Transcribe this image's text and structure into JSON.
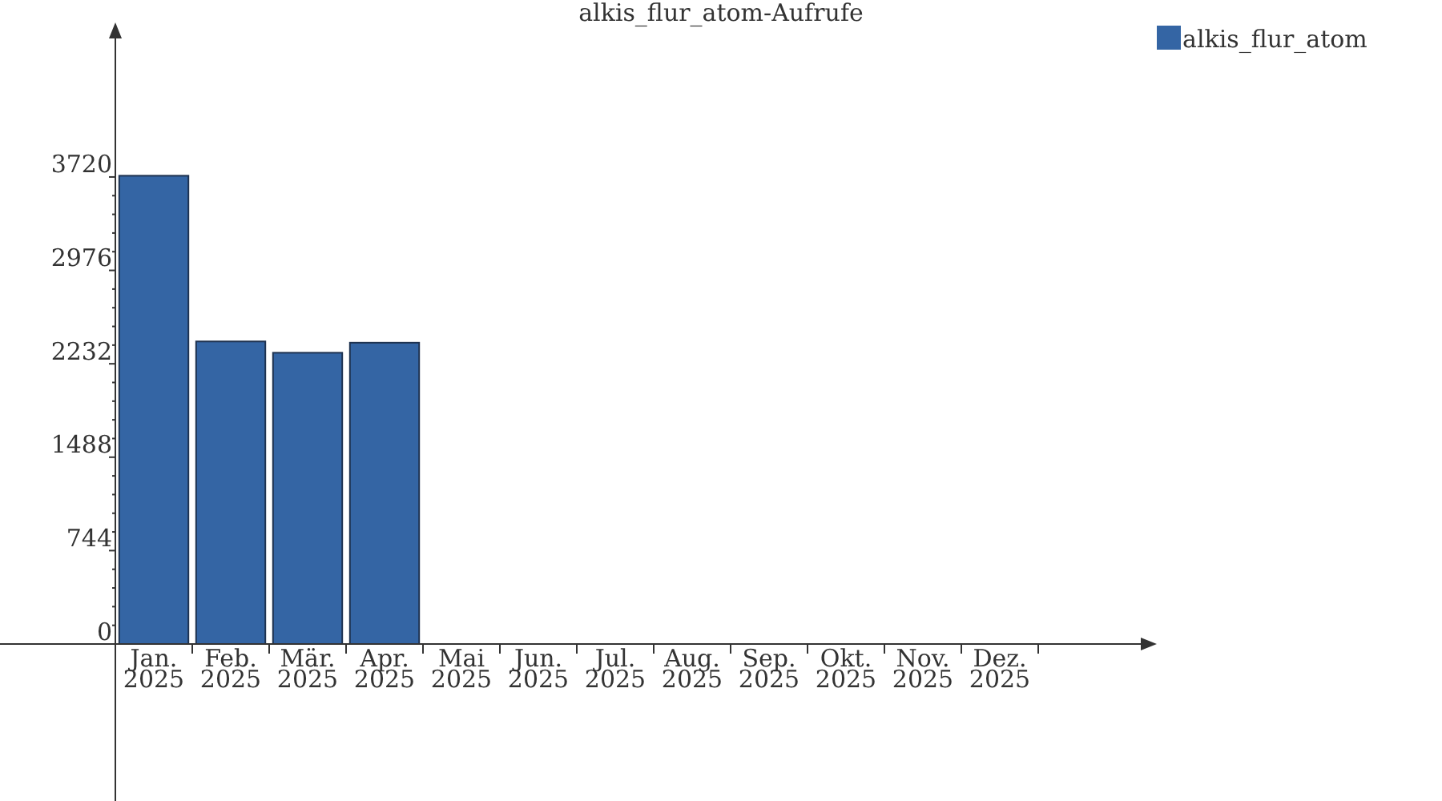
{
  "chart_data": {
    "type": "bar",
    "title": "alkis_flur_atom-Aufrufe",
    "categories": [
      "Jan.\n2025",
      "Feb.\n2025",
      "Mär.\n2025",
      "Apr.\n2025",
      "Mai\n2025",
      "Jun.\n2025",
      "Jul.\n2025",
      "Aug.\n2025",
      "Sep.\n2025",
      "Okt.\n2025",
      "Nov.\n2025",
      "Dez.\n2025"
    ],
    "series": [
      {
        "name": "alkis_flur_atom",
        "color": "#3465a4",
        "values": [
          3730,
          2410,
          2320,
          2400,
          null,
          null,
          null,
          null,
          null,
          null,
          null,
          null
        ]
      }
    ],
    "ylim": [
      0,
      4900
    ],
    "yticks": [
      0,
      {
        "value": 148.8,
        "label": null
      },
      {
        "value": 297.6,
        "label": null
      },
      {
        "value": 446.4,
        "label": null
      },
      {
        "value": 595.2,
        "label": null
      },
      744,
      {
        "value": 892.8,
        "label": null
      },
      {
        "value": 1041.6,
        "label": null
      },
      {
        "value": 1190.4,
        "label": null
      },
      {
        "value": 1339.2,
        "label": null
      },
      1488,
      {
        "value": 1636.8,
        "label": null
      },
      {
        "value": 1785.6,
        "label": null
      },
      {
        "value": 1934.4,
        "label": null
      },
      {
        "value": 2083.2,
        "label": null
      },
      2232,
      {
        "value": 2380.8,
        "label": null
      },
      {
        "value": 2529.6,
        "label": null
      },
      {
        "value": 2678.4,
        "label": null
      },
      {
        "value": 2827.2,
        "label": null
      },
      2976,
      {
        "value": 3124.8,
        "label": null
      },
      {
        "value": 3273.6,
        "label": null
      },
      {
        "value": 3422.4,
        "label": null
      },
      {
        "value": 3571.2,
        "label": null
      },
      3720
    ],
    "grid": false,
    "legend": "top right"
  }
}
